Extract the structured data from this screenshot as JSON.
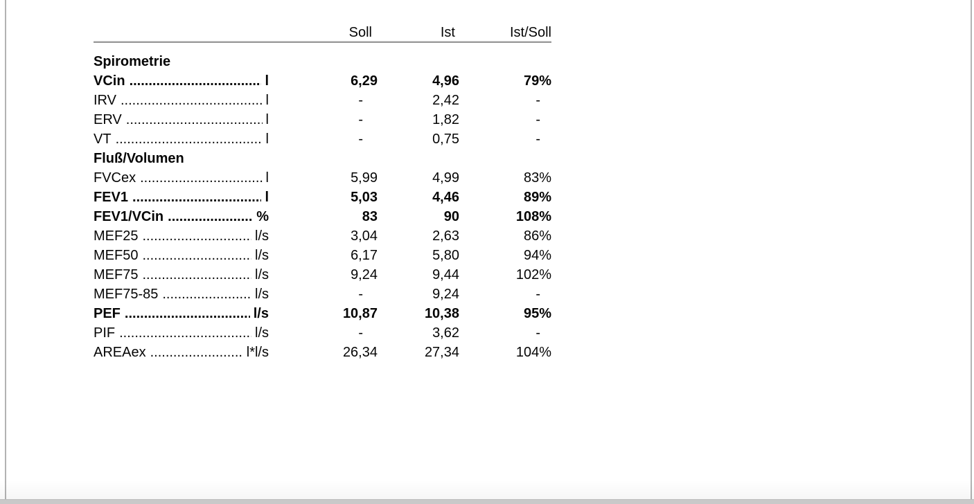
{
  "report": {
    "columns": [
      "Soll",
      "Ist",
      "Ist/Soll"
    ],
    "sections": [
      {
        "title": "Spirometrie",
        "rows": [
          {
            "param": "VCin",
            "unit": "l",
            "soll": "6,29",
            "ist": "4,96",
            "ratio": "79%",
            "bold": true
          },
          {
            "param": "IRV",
            "unit": "l",
            "soll": "-",
            "ist": "2,42",
            "ratio": "-",
            "bold": false
          },
          {
            "param": "ERV",
            "unit": "l",
            "soll": "-",
            "ist": "1,82",
            "ratio": "-",
            "bold": false
          },
          {
            "param": "VT",
            "unit": "l",
            "soll": "-",
            "ist": "0,75",
            "ratio": "-",
            "bold": false
          }
        ]
      },
      {
        "title": "Fluß/Volumen",
        "rows": [
          {
            "param": "FVCex",
            "unit": "l",
            "soll": "5,99",
            "ist": "4,99",
            "ratio": "83%",
            "bold": false
          },
          {
            "param": "FEV1",
            "unit": "l",
            "soll": "5,03",
            "ist": "4,46",
            "ratio": "89%",
            "bold": true
          },
          {
            "param": "FEV1/VCin",
            "unit": "%",
            "soll": "83",
            "ist": "90",
            "ratio": "108%",
            "bold": true
          },
          {
            "param": "MEF25",
            "unit": "l/s",
            "soll": "3,04",
            "ist": "2,63",
            "ratio": "86%",
            "bold": false
          },
          {
            "param": "MEF50",
            "unit": "l/s",
            "soll": "6,17",
            "ist": "5,80",
            "ratio": "94%",
            "bold": false
          },
          {
            "param": "MEF75",
            "unit": "l/s",
            "soll": "9,24",
            "ist": "9,44",
            "ratio": "102%",
            "bold": false
          },
          {
            "param": "MEF75-85",
            "unit": "l/s",
            "soll": "-",
            "ist": "9,24",
            "ratio": "-",
            "bold": false
          },
          {
            "param": "PEF",
            "unit": "l/s",
            "soll": "10,87",
            "ist": "10,38",
            "ratio": "95%",
            "bold": true
          },
          {
            "param": "PIF",
            "unit": "l/s",
            "soll": "-",
            "ist": "3,62",
            "ratio": "-",
            "bold": false
          },
          {
            "param": "AREAex",
            "unit": "l*l/s",
            "soll": "26,34",
            "ist": "27,34",
            "ratio": "104%",
            "bold": false
          }
        ]
      }
    ]
  }
}
